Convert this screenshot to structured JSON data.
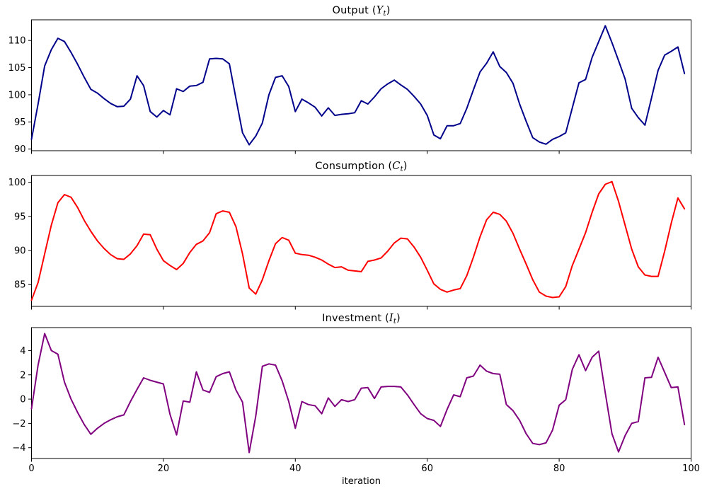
{
  "figure": {
    "xlabel": "iteration",
    "xlim": [
      0,
      100
    ],
    "xticks": [
      0,
      20,
      40,
      60,
      80,
      100
    ],
    "xtick_labels": [
      "0",
      "20",
      "40",
      "60",
      "80",
      "100"
    ],
    "background": "#ffffff",
    "grid": false,
    "legend": "none"
  },
  "chart_data": [
    {
      "type": "line",
      "id": "output",
      "title_prefix": "Output (",
      "title_var": "Y",
      "title_sub": "t",
      "title_suffix": ")",
      "color": "#00008B",
      "ylim": [
        89.7,
        113.8
      ],
      "yticks": [
        110,
        105,
        100,
        95,
        90
      ],
      "ytick_labels": [
        "110",
        "105",
        "100",
        "95",
        "90"
      ],
      "show_xticklabels": false,
      "x_start": 0,
      "x_step": 1,
      "values": [
        91.8,
        98.3,
        105.3,
        108.3,
        110.4,
        109.8,
        107.8,
        105.6,
        103.2,
        101.0,
        100.3,
        99.3,
        98.4,
        97.8,
        97.9,
        99.2,
        103.5,
        101.7,
        96.9,
        95.9,
        97.1,
        96.3,
        101.1,
        100.6,
        101.6,
        101.7,
        102.3,
        106.6,
        106.7,
        106.6,
        105.7,
        99.3,
        93.0,
        90.8,
        92.4,
        94.8,
        100.0,
        103.2,
        103.5,
        101.5,
        96.9,
        99.2,
        98.5,
        97.7,
        96.1,
        97.6,
        96.2,
        96.4,
        96.5,
        96.7,
        98.9,
        98.3,
        99.6,
        101.1,
        102.0,
        102.7,
        101.8,
        101.0,
        99.7,
        98.3,
        96.2,
        92.6,
        91.9,
        94.3,
        94.3,
        94.7,
        97.5,
        100.9,
        104.2,
        105.8,
        107.9,
        105.2,
        104.1,
        102.1,
        98.3,
        95.1,
        92.1,
        91.3,
        90.9,
        91.8,
        92.3,
        93.0,
        97.6,
        102.2,
        102.8,
        106.9,
        109.8,
        112.7,
        109.6,
        106.3,
        102.9,
        97.5,
        95.8,
        94.4,
        99.4,
        104.5,
        107.3,
        108.0,
        108.8,
        103.9
      ]
    },
    {
      "type": "line",
      "id": "consumption",
      "title_prefix": "Consumption (",
      "title_var": "C",
      "title_sub": "t",
      "title_suffix": ")",
      "color": "#FF0000",
      "ylim": [
        81.8,
        101.0
      ],
      "yticks": [
        100,
        95,
        90,
        85
      ],
      "ytick_labels": [
        "100",
        "95",
        "90",
        "85"
      ],
      "show_xticklabels": false,
      "x_start": 0,
      "x_step": 1,
      "values": [
        82.7,
        85.3,
        89.5,
        93.7,
        97.0,
        98.2,
        97.8,
        96.3,
        94.4,
        92.8,
        91.4,
        90.3,
        89.4,
        88.8,
        88.7,
        89.5,
        90.7,
        92.4,
        92.3,
        90.2,
        88.5,
        87.8,
        87.2,
        88.1,
        89.7,
        90.9,
        91.4,
        92.6,
        95.4,
        95.8,
        95.6,
        93.5,
        89.5,
        84.5,
        83.6,
        85.7,
        88.5,
        91.0,
        91.9,
        91.5,
        89.6,
        89.4,
        89.3,
        89.0,
        88.6,
        88.0,
        87.5,
        87.6,
        87.1,
        87.0,
        86.9,
        88.4,
        88.6,
        88.9,
        89.9,
        91.1,
        91.8,
        91.7,
        90.5,
        89.0,
        87.1,
        85.1,
        84.3,
        83.9,
        84.2,
        84.4,
        86.3,
        89.0,
        92.0,
        94.5,
        95.6,
        95.3,
        94.3,
        92.5,
        90.2,
        88.0,
        85.7,
        83.9,
        83.3,
        83.1,
        83.2,
        84.7,
        87.8,
        90.2,
        92.6,
        95.6,
        98.3,
        99.7,
        100.1,
        97.2,
        93.7,
        90.2,
        87.6,
        86.4,
        86.2,
        86.2,
        89.9,
        94.0,
        97.7,
        96.1
      ]
    },
    {
      "type": "line",
      "id": "investment",
      "title_prefix": "Investment (",
      "title_var": "I",
      "title_sub": "t",
      "title_suffix": ")",
      "color": "#800080",
      "ylim": [
        -4.89,
        5.89
      ],
      "yticks": [
        4,
        2,
        0,
        -2,
        -4
      ],
      "ytick_labels": [
        "4",
        "2",
        "0",
        "−2",
        "−4"
      ],
      "show_xticklabels": true,
      "x_start": 0,
      "x_step": 1,
      "values": [
        -0.8,
        2.8,
        5.4,
        4.0,
        3.7,
        1.4,
        0.0,
        -1.1,
        -2.1,
        -2.9,
        -2.4,
        -2.0,
        -1.7,
        -1.45,
        -1.3,
        -0.2,
        0.8,
        1.75,
        1.55,
        1.4,
        1.25,
        -1.25,
        -2.95,
        -0.15,
        -0.25,
        2.25,
        0.75,
        0.55,
        1.85,
        2.1,
        2.25,
        0.75,
        -0.25,
        -4.4,
        -1.4,
        2.7,
        2.9,
        2.8,
        1.5,
        -0.2,
        -2.4,
        -0.2,
        -0.45,
        -0.55,
        -1.2,
        0.1,
        -0.6,
        -0.05,
        -0.2,
        -0.05,
        0.9,
        0.95,
        0.05,
        1.0,
        1.05,
        1.05,
        1.0,
        0.35,
        -0.45,
        -1.2,
        -1.6,
        -1.75,
        -2.25,
        -0.85,
        0.35,
        0.2,
        1.75,
        1.9,
        2.8,
        2.3,
        2.1,
        2.05,
        -0.45,
        -0.95,
        -1.75,
        -2.85,
        -3.65,
        -3.75,
        -3.6,
        -2.55,
        -0.5,
        -0.05,
        2.45,
        3.65,
        2.35,
        3.45,
        3.95,
        0.5,
        -2.85,
        -4.35,
        -3.0,
        -2.0,
        -1.85,
        1.75,
        1.8,
        3.45,
        2.2,
        0.95,
        1.0,
        -2.1
      ]
    }
  ]
}
